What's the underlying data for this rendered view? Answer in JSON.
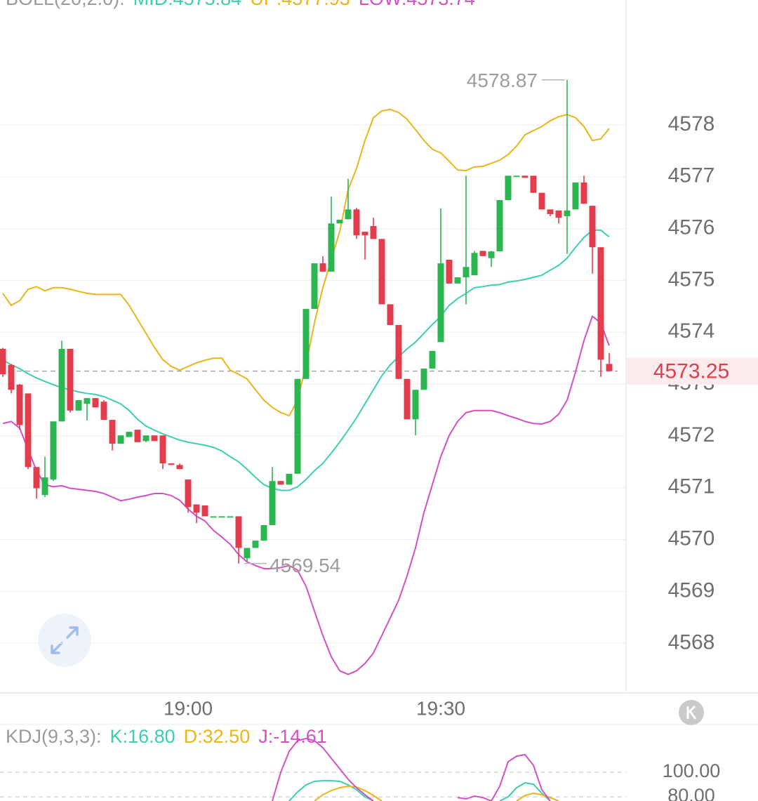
{
  "chart_data": [
    {
      "type": "candlestick",
      "indicator": "BOLL(20,2.0):",
      "categories": [
        null,
        null,
        null,
        null,
        null,
        null,
        null,
        null,
        null,
        null,
        null,
        null,
        null,
        null,
        null,
        null,
        null,
        null,
        null,
        null,
        null,
        null,
        "19:00",
        null,
        null,
        null,
        null,
        null,
        null,
        null,
        null,
        null,
        null,
        null,
        null,
        null,
        null,
        null,
        null,
        null,
        null,
        null,
        null,
        null,
        null,
        null,
        null,
        null,
        null,
        null,
        null,
        null,
        "19:30",
        null,
        null,
        null,
        null,
        null,
        null,
        null,
        null,
        null,
        null,
        null,
        null,
        null,
        null,
        null,
        null,
        null,
        null,
        null,
        null
      ],
      "open": [
        4573.68,
        4573.37,
        4572.99,
        4572.82,
        4571.4,
        4570.86,
        4571.16,
        4572.28,
        4573.68,
        4572.49,
        4572.62,
        4572.73,
        4572.66,
        4572.31,
        4571.85,
        4571.98,
        4572.12,
        4571.9,
        4572.01,
        4572.01,
        4571.47,
        4571.44,
        4571.16,
        4570.68,
        4570.66,
        4570.45,
        4570.45,
        4570.45,
        4570.45,
        4569.64,
        4569.84,
        4569.98,
        4570.28,
        4571.13,
        4571.06,
        4571.27,
        4573.1,
        4574.45,
        4575.33,
        4575.17,
        4576.1,
        4576.18,
        4576.37,
        4575.94,
        4576.05,
        4575.8,
        4574.54,
        4574.14,
        4573.1,
        4572.32,
        4572.89,
        4573.3,
        4573.81,
        4575.4,
        4574.94,
        4575.06,
        4575.1,
        4575.57,
        4575.43,
        4575.56,
        4576.55,
        4577.02,
        4577.02,
        4577.02,
        4576.69,
        4576.37,
        4576.35,
        4576.24,
        4576.37,
        4576.89,
        4576.44,
        4575.64,
        4573.39
      ],
      "high": [
        4573.7,
        4573.39,
        4573.0,
        4572.82,
        4571.4,
        4571.6,
        4572.28,
        4573.84,
        4573.68,
        4572.69,
        4572.73,
        4572.73,
        4572.69,
        4572.31,
        4572.01,
        4572.08,
        4572.12,
        4572.01,
        4572.01,
        4572.01,
        4571.47,
        4571.47,
        4571.16,
        4570.68,
        4570.66,
        4570.45,
        4570.45,
        4570.45,
        4570.45,
        4569.84,
        4569.98,
        4570.28,
        4571.4,
        4571.13,
        4571.27,
        4573.1,
        4574.45,
        4575.33,
        4575.47,
        4576.62,
        4576.17,
        4576.96,
        4576.4,
        4575.94,
        4576.21,
        4575.8,
        4574.54,
        4574.14,
        4573.1,
        4572.89,
        4573.3,
        4573.64,
        4576.39,
        4575.4,
        4575.06,
        4577.02,
        4575.57,
        4575.57,
        4575.57,
        4576.55,
        4577.02,
        4577.02,
        4577.02,
        4577.02,
        4576.69,
        4576.37,
        4576.35,
        4578.87,
        4576.89,
        4577.02,
        4576.44,
        4575.64,
        4573.6
      ],
      "low": [
        4573.14,
        4572.82,
        4572.12,
        4571.36,
        4570.79,
        4570.82,
        4571.13,
        4572.28,
        4572.45,
        4572.49,
        4572.3,
        4572.55,
        4572.31,
        4571.72,
        4571.85,
        4571.98,
        4571.88,
        4571.88,
        4571.9,
        4571.36,
        4571.44,
        4571.36,
        4570.52,
        4570.32,
        4570.45,
        4570.45,
        4570.45,
        4570.45,
        4569.54,
        4569.57,
        4569.84,
        4569.98,
        4570.28,
        4571.06,
        4571.06,
        4571.27,
        4573.1,
        4574.45,
        4575.17,
        4575.17,
        4576.1,
        4576.18,
        4575.8,
        4575.4,
        4575.8,
        4574.54,
        4574.14,
        4573.1,
        4572.32,
        4572.01,
        4572.89,
        4573.3,
        4573.81,
        4574.94,
        4574.94,
        4574.54,
        4575.1,
        4575.47,
        4575.26,
        4575.56,
        4576.55,
        4577.02,
        4576.98,
        4576.69,
        4576.37,
        4576.24,
        4576.1,
        4575.51,
        4576.37,
        4576.48,
        4575.13,
        4573.14,
        4573.25
      ],
      "close": [
        4573.19,
        4572.89,
        4572.21,
        4571.4,
        4570.99,
        4571.2,
        4572.28,
        4573.68,
        4572.49,
        4572.69,
        4572.73,
        4572.55,
        4572.31,
        4571.85,
        4572.01,
        4572.08,
        4571.88,
        4572.01,
        4571.9,
        4571.47,
        4571.44,
        4571.36,
        4570.63,
        4570.52,
        4570.45,
        4570.45,
        4570.45,
        4570.45,
        4569.84,
        4569.84,
        4569.98,
        4570.28,
        4571.13,
        4571.06,
        4571.27,
        4573.1,
        4574.45,
        4575.33,
        4575.17,
        4576.1,
        4576.17,
        4576.37,
        4575.87,
        4575.87,
        4575.8,
        4574.54,
        4574.14,
        4573.1,
        4572.32,
        4572.89,
        4573.3,
        4573.64,
        4575.33,
        4574.94,
        4575.06,
        4575.26,
        4575.53,
        4575.47,
        4575.56,
        4576.55,
        4577.02,
        4577.02,
        4576.98,
        4576.69,
        4576.37,
        4576.28,
        4576.21,
        4576.35,
        4576.89,
        4576.48,
        4575.64,
        4573.47,
        4573.25
      ],
      "up_color": "#2db552",
      "down_color": "#e23d4d",
      "series": [
        {
          "name": "MID:",
          "color": "#3cceb0",
          "values": [
            4573.47,
            4573.37,
            4573.3,
            4573.2,
            4573.12,
            4573.05,
            4572.99,
            4572.93,
            4572.89,
            4572.85,
            4572.82,
            4572.8,
            4572.76,
            4572.69,
            4572.62,
            4572.49,
            4572.32,
            4572.19,
            4572.11,
            4572.04,
            4571.98,
            4571.92,
            4571.88,
            4571.85,
            4571.82,
            4571.78,
            4571.71,
            4571.6,
            4571.5,
            4571.36,
            4571.2,
            4571.06,
            4570.99,
            4570.95,
            4570.95,
            4571.02,
            4571.16,
            4571.33,
            4571.47,
            4571.67,
            4571.88,
            4572.11,
            4572.35,
            4572.62,
            4572.89,
            4573.16,
            4573.37,
            4573.53,
            4573.68,
            4573.81,
            4573.98,
            4574.15,
            4574.31,
            4574.52,
            4574.65,
            4574.75,
            4574.86,
            4574.88,
            4574.91,
            4574.92,
            4574.97,
            4574.99,
            4575.02,
            4575.06,
            4575.1,
            4575.2,
            4575.29,
            4575.43,
            4575.64,
            4575.83,
            4575.97,
            4575.97,
            4575.84
          ]
        },
        {
          "name": "UP:",
          "color": "#ebb419",
          "values": [
            4574.75,
            4574.52,
            4574.61,
            4574.83,
            4574.88,
            4574.8,
            4574.86,
            4574.86,
            4574.83,
            4574.79,
            4574.75,
            4574.73,
            4574.73,
            4574.73,
            4574.73,
            4574.52,
            4574.25,
            4573.98,
            4573.71,
            4573.47,
            4573.34,
            4573.27,
            4573.34,
            4573.41,
            4573.46,
            4573.5,
            4573.5,
            4573.27,
            4573.19,
            4573.1,
            4572.89,
            4572.69,
            4572.55,
            4572.45,
            4572.39,
            4572.69,
            4573.37,
            4574.18,
            4574.86,
            4575.4,
            4575.94,
            4576.75,
            4577.16,
            4577.7,
            4578.14,
            4578.27,
            4578.3,
            4578.24,
            4578.11,
            4577.91,
            4577.7,
            4577.53,
            4577.46,
            4577.3,
            4577.13,
            4577.12,
            4577.19,
            4577.2,
            4577.26,
            4577.32,
            4577.43,
            4577.59,
            4577.81,
            4577.89,
            4577.97,
            4578.08,
            4578.16,
            4578.2,
            4578.14,
            4577.97,
            4577.7,
            4577.73,
            4577.93
          ]
        },
        {
          "name": "LOW:",
          "color": "#d44fc4",
          "values": [
            4572.24,
            4572.28,
            4572.15,
            4571.74,
            4571.33,
            4571.06,
            4571.02,
            4571.04,
            4570.99,
            4570.97,
            4570.95,
            4570.93,
            4570.89,
            4570.82,
            4570.75,
            4570.78,
            4570.82,
            4570.85,
            4570.89,
            4570.89,
            4570.85,
            4570.76,
            4570.59,
            4570.45,
            4570.36,
            4570.18,
            4570.05,
            4569.91,
            4569.71,
            4569.57,
            4569.5,
            4569.44,
            4569.44,
            4569.46,
            4569.5,
            4569.41,
            4569.1,
            4568.62,
            4568.15,
            4567.74,
            4567.47,
            4567.4,
            4567.47,
            4567.61,
            4567.81,
            4568.15,
            4568.49,
            4568.83,
            4569.3,
            4569.84,
            4570.52,
            4571.06,
            4571.6,
            4572.01,
            4572.28,
            4572.45,
            4572.49,
            4572.49,
            4572.49,
            4572.45,
            4572.39,
            4572.34,
            4572.28,
            4572.24,
            4572.23,
            4572.28,
            4572.42,
            4572.69,
            4573.23,
            4573.84,
            4574.31,
            4574.18,
            4573.74
          ]
        }
      ],
      "ylim": [
        4567.07,
        4580.41
      ],
      "yticks": [
        4568,
        4569,
        4570,
        4571,
        4572,
        4573,
        4574,
        4575,
        4576,
        4577,
        4578
      ],
      "grid": true
    },
    {
      "type": "line",
      "indicator": "KDJ(9,3,3):",
      "series": [
        {
          "name": "K:",
          "color": "#3cceb0",
          "last": {
            "value": 16.8,
            "label": "16.80"
          },
          "values": [
            null,
            null,
            null,
            null,
            null,
            null,
            null,
            null,
            null,
            null,
            null,
            null,
            null,
            null,
            null,
            null,
            null,
            null,
            null,
            null,
            null,
            null,
            null,
            null,
            null,
            null,
            null,
            null,
            null,
            null,
            null,
            null,
            null,
            null,
            76.6,
            84,
            89.7,
            92.6,
            93.1,
            93.1,
            92.6,
            89.7,
            85.7,
            80,
            76.6,
            null,
            null,
            null,
            null,
            null,
            null,
            null,
            null,
            null,
            null,
            null,
            null,
            null,
            null,
            76.6,
            80,
            87.4,
            91.4,
            90.3,
            82.9,
            76.6,
            null,
            null,
            null,
            null,
            null,
            null,
            null
          ]
        },
        {
          "name": "D:",
          "color": "#ebb419",
          "last": {
            "value": 32.5,
            "label": "32.50"
          },
          "values": [
            null,
            null,
            null,
            null,
            null,
            null,
            null,
            null,
            null,
            null,
            null,
            null,
            null,
            null,
            null,
            null,
            null,
            null,
            null,
            null,
            null,
            null,
            null,
            null,
            null,
            null,
            null,
            null,
            null,
            null,
            null,
            null,
            null,
            null,
            null,
            null,
            null,
            76.6,
            81.7,
            85.1,
            87.4,
            88.6,
            88,
            85.1,
            81.1,
            76.6,
            null,
            null,
            null,
            null,
            null,
            null,
            null,
            null,
            null,
            null,
            null,
            null,
            null,
            null,
            null,
            76.6,
            81.1,
            82.9,
            81.7,
            79.4,
            76.6,
            null,
            null,
            null,
            null,
            null,
            null
          ]
        },
        {
          "name": "J:",
          "color": "#d44fc4",
          "last": -14.61,
          "values": [
            null,
            null,
            null,
            null,
            null,
            null,
            null,
            null,
            null,
            null,
            null,
            null,
            null,
            null,
            null,
            null,
            null,
            null,
            null,
            null,
            null,
            null,
            null,
            null,
            null,
            null,
            null,
            null,
            null,
            null,
            null,
            null,
            76.6,
            100,
            117,
            125.7,
            127.4,
            125.7,
            120,
            111.4,
            102.9,
            94.3,
            87.4,
            81.7,
            76.6,
            null,
            null,
            null,
            null,
            null,
            null,
            null,
            null,
            null,
            79.4,
            78.3,
            80.6,
            79.4,
            76.6,
            88.6,
            108.6,
            113.1,
            114.3,
            105.7,
            85.7,
            76.6,
            null,
            null,
            null,
            null,
            null,
            null,
            null
          ]
        }
      ],
      "ylim": [
        76.6,
        134.3
      ],
      "yticks": [
        {
          "value": 100,
          "label": "100.00"
        },
        {
          "value": 80,
          "label": "80.00"
        }
      ],
      "grid": true
    }
  ]
}
